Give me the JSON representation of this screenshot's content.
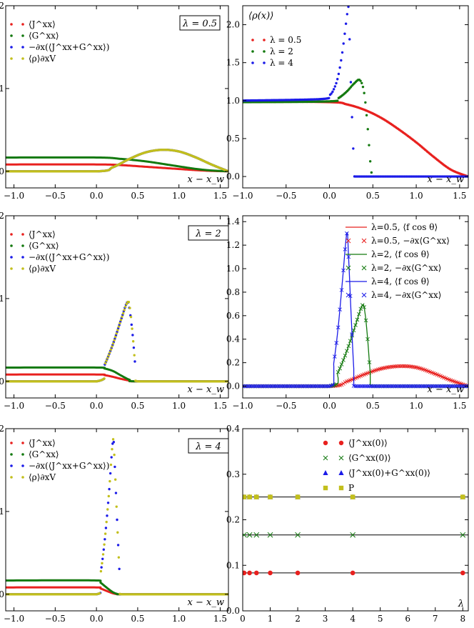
{
  "colors": {
    "red": "#e8201e",
    "green": "#13790f",
    "blue": "#1b1be8",
    "olive": "#c2bf1c",
    "black": "#000000"
  },
  "chart_data": [
    {
      "id": "p1",
      "type": "line",
      "box_label": "λ = 0.5",
      "xlabel": "x − x_w",
      "ylabel": "",
      "xlim": [
        -1.1,
        1.6
      ],
      "ylim": [
        -0.2,
        2.0
      ],
      "xticks": [
        "−1.0",
        "−0.5",
        "0.0",
        "0.5",
        "1.0",
        "1.5"
      ],
      "xtick_values": [
        -1.0,
        -0.5,
        0.0,
        0.5,
        1.0,
        1.5
      ],
      "yticks": [
        "0",
        "1",
        "2"
      ],
      "ytick_values": [
        0,
        1,
        2
      ],
      "legend": [
        "⟨J^xx⟩",
        "⟨G^xx⟩",
        "−∂x(⟨J^xx+G^xx⟩)",
        "⟨ρ⟩∂xV"
      ],
      "series": [
        {
          "name": "⟨J^xx⟩",
          "color": "red",
          "x": [
            -1.1,
            0.0,
            0.3,
            0.6,
            0.9,
            1.2,
            1.4,
            1.6
          ],
          "y": [
            0.083,
            0.083,
            0.075,
            0.055,
            0.035,
            0.015,
            0.005,
            0.0
          ]
        },
        {
          "name": "⟨G^xx⟩",
          "color": "green",
          "x": [
            -1.1,
            0.0,
            0.3,
            0.6,
            0.9,
            1.2,
            1.4,
            1.6
          ],
          "y": [
            0.167,
            0.167,
            0.15,
            0.12,
            0.075,
            0.03,
            0.01,
            0.0
          ]
        },
        {
          "name": "−∂x(⟨J^xx+G^xx⟩)",
          "color": "blue",
          "x": [
            -1.1,
            0.0,
            0.2,
            0.4,
            0.6,
            0.8,
            1.0,
            1.2,
            1.4,
            1.6
          ],
          "y": [
            0.0,
            0.0,
            0.05,
            0.15,
            0.23,
            0.26,
            0.24,
            0.17,
            0.08,
            0.0
          ]
        },
        {
          "name": "⟨ρ⟩∂xV",
          "color": "olive",
          "x": [
            -1.1,
            0.0,
            0.2,
            0.4,
            0.6,
            0.8,
            1.0,
            1.2,
            1.4,
            1.6
          ],
          "y": [
            0.0,
            0.0,
            0.05,
            0.15,
            0.23,
            0.26,
            0.24,
            0.17,
            0.08,
            0.0
          ]
        }
      ]
    },
    {
      "id": "p2",
      "type": "scatter",
      "box_label": "",
      "xlabel": "x − x_w",
      "ylabel": "⟨ρ(x)⟩",
      "xlim": [
        -1.0,
        1.6
      ],
      "ylim": [
        -0.15,
        2.25
      ],
      "xticks": [
        "−1.0",
        "−0.5",
        "0.0",
        "0.5",
        "1.0",
        "1.5"
      ],
      "xtick_values": [
        -1.0,
        -0.5,
        0.0,
        0.5,
        1.0,
        1.5
      ],
      "yticks": [
        "0.0",
        "0.5",
        "1.0",
        "1.5",
        "2.0"
      ],
      "ytick_values": [
        0.0,
        0.5,
        1.0,
        1.5,
        2.0
      ],
      "legend": [
        "λ = 0.5",
        "λ = 2",
        "λ = 4"
      ],
      "series": [
        {
          "name": "λ = 0.5",
          "color": "red",
          "x": [
            -1.0,
            0.0,
            0.2,
            0.4,
            0.6,
            0.8,
            1.0,
            1.2,
            1.4,
            1.6
          ],
          "y": [
            0.99,
            0.98,
            0.95,
            0.88,
            0.77,
            0.62,
            0.45,
            0.26,
            0.09,
            0.0
          ]
        },
        {
          "name": "λ = 2",
          "color": "green",
          "x": [
            -1.0,
            0.0,
            0.1,
            0.2,
            0.28,
            0.35,
            0.4,
            0.44,
            0.47,
            0.49
          ],
          "y": [
            0.98,
            0.99,
            1.03,
            1.12,
            1.22,
            1.27,
            1.1,
            0.65,
            0.2,
            0.0
          ]
        },
        {
          "name": "λ = 4",
          "color": "blue",
          "x": [
            -1.0,
            -0.1,
            0.0,
            0.05,
            0.1,
            0.15,
            0.2,
            0.22,
            0.25,
            0.28,
            0.29,
            1.6
          ],
          "y": [
            1.0,
            1.02,
            1.07,
            1.15,
            1.32,
            1.65,
            2.1,
            2.2,
            1.1,
            0.2,
            0.0,
            0.0
          ]
        }
      ]
    },
    {
      "id": "p3",
      "type": "line",
      "box_label": "λ = 2",
      "xlabel": "x − x_w",
      "ylabel": "",
      "xlim": [
        -1.1,
        1.6
      ],
      "ylim": [
        -0.2,
        2.0
      ],
      "xticks": [
        "−1.0",
        "−0.5",
        "0.0",
        "0.5",
        "1.0",
        "1.5"
      ],
      "xtick_values": [
        -1.0,
        -0.5,
        0.0,
        0.5,
        1.0,
        1.5
      ],
      "yticks": [
        "0",
        "1",
        "2"
      ],
      "ytick_values": [
        0,
        1,
        2
      ],
      "legend": [
        "⟨J^xx⟩",
        "⟨G^xx⟩",
        "−∂x(⟨J^xx+G^xx⟩)",
        "⟨ρ⟩∂xV"
      ],
      "series": [
        {
          "name": "⟨J^xx⟩",
          "color": "red",
          "x": [
            -1.1,
            0.0,
            0.1,
            0.2,
            0.3,
            0.4,
            0.5,
            1.6
          ],
          "y": [
            0.083,
            0.083,
            0.075,
            0.055,
            0.03,
            0.01,
            0.0,
            0.0
          ]
        },
        {
          "name": "⟨G^xx⟩",
          "color": "green",
          "x": [
            -1.1,
            0.0,
            0.1,
            0.2,
            0.3,
            0.4,
            0.5,
            1.6
          ],
          "y": [
            0.167,
            0.167,
            0.155,
            0.125,
            0.07,
            0.02,
            0.0,
            0.0
          ]
        },
        {
          "name": "−∂x(⟨J^xx+G^xx⟩)",
          "color": "blue",
          "x": [
            -1.1,
            0.0,
            0.1,
            0.2,
            0.3,
            0.37,
            0.4,
            0.44,
            0.47,
            0.5,
            1.6
          ],
          "y": [
            0.0,
            0.0,
            0.2,
            0.45,
            0.75,
            0.95,
            0.88,
            0.55,
            0.2,
            0.0,
            0.0
          ]
        },
        {
          "name": "⟨ρ⟩∂xV",
          "color": "olive",
          "x": [
            -1.1,
            0.0,
            0.1,
            0.2,
            0.3,
            0.38,
            0.41,
            0.44,
            0.47,
            0.5,
            1.6
          ],
          "y": [
            0.0,
            0.0,
            0.2,
            0.45,
            0.75,
            0.96,
            0.85,
            0.55,
            0.2,
            0.0,
            0.0
          ]
        }
      ]
    },
    {
      "id": "p4",
      "type": "line",
      "box_label": "",
      "xlabel": "x − x_w",
      "ylabel": "",
      "xlim": [
        -1.0,
        1.6
      ],
      "ylim": [
        -0.1,
        1.45
      ],
      "xticks": [
        "−1.0",
        "−0.5",
        "0.0",
        "0.5",
        "1.0",
        "1.5"
      ],
      "xtick_values": [
        -1.0,
        -0.5,
        0.0,
        0.5,
        1.0,
        1.5
      ],
      "yticks": [
        "0.0",
        "0.2",
        "0.4",
        "0.6",
        "0.8",
        "1.0",
        "1.2",
        "1.4"
      ],
      "ytick_values": [
        0.0,
        0.2,
        0.4,
        0.6,
        0.8,
        1.0,
        1.2,
        1.4
      ],
      "legend": [
        "λ=0.5, ⟨f cos θ⟩",
        "λ=0.5, −∂x⟨G^xx⟩",
        "λ=2, ⟨f cos θ⟩",
        "λ=2, −∂x⟨G^xx⟩",
        "λ=4, ⟨f cos θ⟩",
        "λ=4, −∂x⟨G^xx⟩"
      ],
      "series": [
        {
          "name": "λ=0.5, ⟨f cos θ⟩",
          "color": "red",
          "x": [
            -1.0,
            0.0,
            0.2,
            0.4,
            0.6,
            0.8,
            1.0,
            1.2,
            1.4,
            1.6
          ],
          "y": [
            0.0,
            0.0,
            0.04,
            0.1,
            0.15,
            0.17,
            0.16,
            0.11,
            0.05,
            0.0
          ]
        },
        {
          "name": "λ=2, ⟨f cos θ⟩",
          "color": "green",
          "x": [
            -1.0,
            0.0,
            0.1,
            0.2,
            0.3,
            0.38,
            0.41,
            0.44,
            0.47,
            0.5,
            1.6
          ],
          "y": [
            0.0,
            0.0,
            0.12,
            0.3,
            0.52,
            0.69,
            0.62,
            0.4,
            0.12,
            0.0,
            0.0
          ]
        },
        {
          "name": "λ=4, ⟨f cos θ⟩",
          "color": "blue",
          "x": [
            -1.0,
            0.0,
            0.05,
            0.1,
            0.15,
            0.2,
            0.22,
            0.25,
            0.28,
            0.3,
            1.6
          ],
          "y": [
            0.0,
            0.0,
            0.2,
            0.5,
            0.9,
            1.3,
            1.1,
            0.6,
            0.15,
            0.0,
            0.0
          ]
        }
      ]
    },
    {
      "id": "p5",
      "type": "line",
      "box_label": "λ = 4",
      "xlabel": "x − x_w",
      "ylabel": "",
      "xlim": [
        -1.1,
        1.6
      ],
      "ylim": [
        -0.2,
        2.0
      ],
      "xticks": [
        "−1.0",
        "−0.5",
        "0.0",
        "0.5",
        "1.0",
        "1.5"
      ],
      "xtick_values": [
        -1.0,
        -0.5,
        0.0,
        0.5,
        1.0,
        1.5
      ],
      "yticks": [
        "0",
        "1",
        "2"
      ],
      "ytick_values": [
        0,
        1,
        2
      ],
      "legend": [
        "⟨J^xx⟩",
        "⟨G^xx⟩",
        "−∂x(⟨J^xx+G^xx⟩)",
        "⟨ρ⟩∂xV"
      ],
      "series": [
        {
          "name": "⟨J^xx⟩",
          "color": "red",
          "x": [
            -1.1,
            0.0,
            0.05,
            0.1,
            0.15,
            0.2,
            0.25,
            0.3,
            1.6
          ],
          "y": [
            0.083,
            0.083,
            0.07,
            0.05,
            0.03,
            0.012,
            0.002,
            0.0,
            0.0
          ]
        },
        {
          "name": "⟨G^xx⟩",
          "color": "green",
          "x": [
            -1.1,
            0.0,
            0.05,
            0.1,
            0.15,
            0.2,
            0.25,
            0.3,
            1.6
          ],
          "y": [
            0.167,
            0.167,
            0.14,
            0.1,
            0.06,
            0.025,
            0.005,
            0.0,
            0.0
          ]
        },
        {
          "name": "−∂x(⟨J^xx+G^xx⟩)",
          "color": "blue",
          "x": [
            -1.1,
            0.0,
            0.05,
            0.1,
            0.15,
            0.2,
            0.22,
            0.25,
            0.28,
            0.3,
            1.6
          ],
          "y": [
            0.0,
            0.0,
            0.25,
            0.65,
            1.2,
            1.85,
            1.6,
            0.9,
            0.25,
            0.0,
            0.0
          ]
        },
        {
          "name": "⟨ρ⟩∂xV",
          "color": "olive",
          "x": [
            -1.1,
            0.0,
            0.05,
            0.1,
            0.15,
            0.2,
            0.22,
            0.25,
            0.28,
            0.3,
            1.6
          ],
          "y": [
            0.0,
            0.0,
            0.25,
            0.65,
            1.2,
            1.86,
            1.6,
            0.9,
            0.25,
            0.0,
            0.0
          ]
        }
      ]
    },
    {
      "id": "p6",
      "type": "scatter",
      "box_label": "",
      "xlabel": "λ",
      "ylabel": "",
      "xlim": [
        0,
        8.2
      ],
      "ylim": [
        0.0,
        0.4
      ],
      "xticks": [
        "0",
        "1",
        "2",
        "3",
        "4",
        "5",
        "6",
        "7",
        "8"
      ],
      "xtick_values": [
        0,
        1,
        2,
        3,
        4,
        5,
        6,
        7,
        8
      ],
      "yticks": [
        "0.0",
        "0.1",
        "0.2",
        "0.3",
        "0.4"
      ],
      "ytick_values": [
        0.0,
        0.1,
        0.2,
        0.3,
        0.4
      ],
      "legend": [
        "⟨J^xx(0)⟩",
        "⟨G^xx(0)⟩",
        "⟨J^xx(0)+G^xx(0)⟩",
        "P"
      ],
      "hlines": [
        0.0833,
        0.1667,
        0.25
      ],
      "series": [
        {
          "name": "⟨J^xx(0)⟩",
          "color": "red",
          "marker": "circle",
          "x": [
            0.05,
            0.25,
            0.5,
            1,
            2,
            4,
            8
          ],
          "y": [
            0.0833,
            0.0833,
            0.0833,
            0.0833,
            0.0833,
            0.0833,
            0.0833
          ]
        },
        {
          "name": "⟨G^xx(0)⟩",
          "color": "green",
          "marker": "x",
          "x": [
            0.05,
            0.25,
            0.5,
            1,
            2,
            4,
            8
          ],
          "y": [
            0.1667,
            0.1667,
            0.1667,
            0.1667,
            0.1667,
            0.1667,
            0.1667
          ]
        },
        {
          "name": "⟨J^xx(0)+G^xx(0)⟩",
          "color": "blue",
          "marker": "triangle",
          "x": [
            0.05,
            0.25,
            0.5,
            1,
            2,
            4,
            8
          ],
          "y": [
            0.25,
            0.25,
            0.25,
            0.25,
            0.25,
            0.25,
            0.25
          ]
        },
        {
          "name": "P",
          "color": "olive",
          "marker": "square",
          "x": [
            0.05,
            0.25,
            0.5,
            1,
            2,
            4,
            8
          ],
          "y": [
            0.25,
            0.25,
            0.25,
            0.25,
            0.25,
            0.25,
            0.25
          ]
        }
      ]
    }
  ]
}
